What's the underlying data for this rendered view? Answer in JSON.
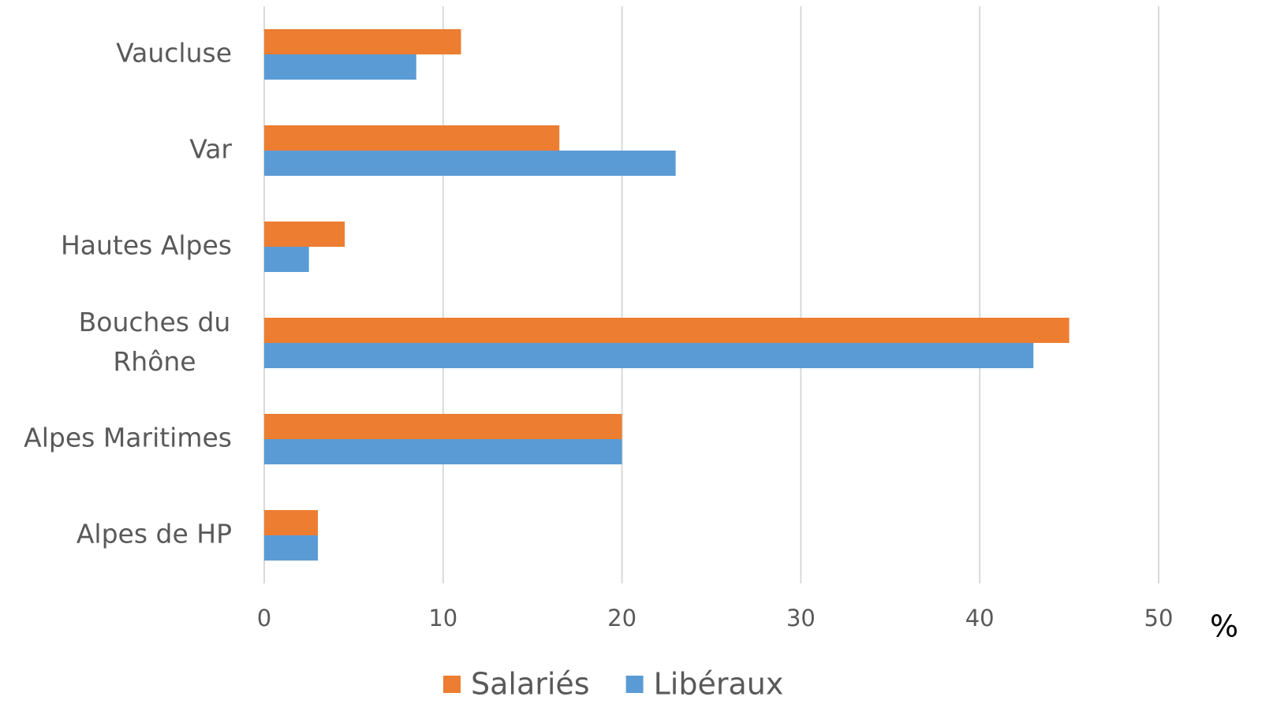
{
  "chart_data": {
    "type": "hbar",
    "categories": [
      "Vaucluse",
      "Var",
      "Hautes Alpes",
      "Bouches du Rhône",
      "Alpes Maritimes",
      "Alpes de HP"
    ],
    "series": [
      {
        "name": "Salariés",
        "color": "#ed7d31",
        "values": [
          11,
          16.5,
          4.5,
          45,
          20,
          3
        ]
      },
      {
        "name": "Libéraux",
        "color": "#5b9bd5",
        "values": [
          8.5,
          23,
          2.5,
          43,
          20,
          3
        ]
      }
    ],
    "xlabel": "%",
    "xlim": [
      0,
      50
    ],
    "xticks": [
      0,
      10,
      20,
      30,
      40,
      50
    ],
    "grid": true,
    "legend": "bottom"
  }
}
